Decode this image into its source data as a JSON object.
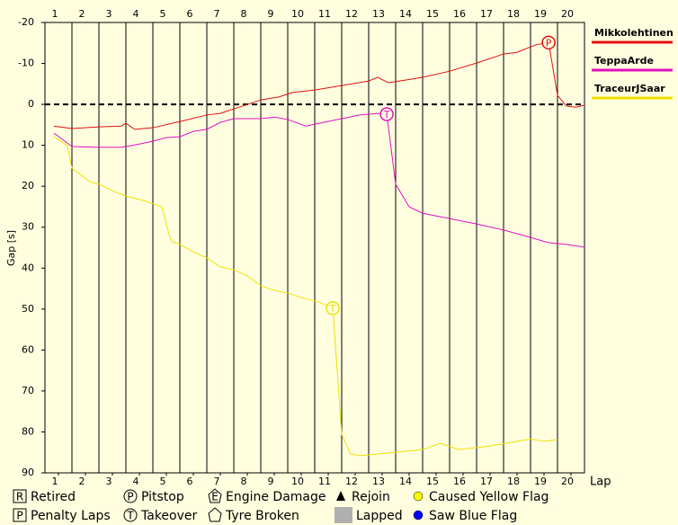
{
  "chart_data": {
    "type": "line",
    "xlabel": "Lap",
    "ylabel": "Gap [s]",
    "xlim": [
      0,
      20
    ],
    "ylim": [
      -20,
      90
    ],
    "y_inverted": true,
    "xticks": [
      {
        "value": 0.5,
        "label": "1"
      },
      {
        "value": 1.5,
        "label": "2"
      },
      {
        "value": 2.5,
        "label": "3"
      },
      {
        "value": 3.5,
        "label": "4"
      },
      {
        "value": 4.5,
        "label": "5"
      },
      {
        "value": 5.5,
        "label": "6"
      },
      {
        "value": 6.5,
        "label": "7"
      },
      {
        "value": 7.5,
        "label": "8"
      },
      {
        "value": 8.5,
        "label": "9"
      },
      {
        "value": 9.5,
        "label": "10"
      },
      {
        "value": 10.5,
        "label": "11"
      },
      {
        "value": 11.5,
        "label": "12"
      },
      {
        "value": 12.5,
        "label": "13"
      },
      {
        "value": 13.5,
        "label": "14"
      },
      {
        "value": 14.5,
        "label": "15"
      },
      {
        "value": 15.5,
        "label": "16"
      },
      {
        "value": 16.5,
        "label": "17"
      },
      {
        "value": 17.5,
        "label": "18"
      },
      {
        "value": 18.5,
        "label": "19"
      },
      {
        "value": 19.5,
        "label": "20"
      }
    ],
    "lap_lines": [
      1,
      2,
      3,
      4,
      5,
      6,
      7,
      8,
      9,
      10,
      11,
      12,
      13,
      14,
      15,
      16,
      17,
      18,
      19
    ],
    "yticks": [
      -20,
      -10,
      0,
      10,
      20,
      30,
      40,
      50,
      60,
      70,
      80,
      90
    ],
    "zero_line": 0,
    "series": [
      {
        "name": "Mikkolehtinen",
        "color": "#e01010",
        "x": [
          0.33,
          1.0,
          2.0,
          2.83,
          3.0,
          3.33,
          4.0,
          5.0,
          6.0,
          6.5,
          7.33,
          8.0,
          8.67,
          9.17,
          10.0,
          11.0,
          12.0,
          12.33,
          12.73,
          13.33,
          14.0,
          15.0,
          16.0,
          17.0,
          17.5,
          18.17,
          18.67,
          19.0,
          19.33,
          19.67,
          20
        ],
        "values": [
          5.3,
          5.9,
          5.5,
          5.3,
          4.6,
          6.1,
          5.7,
          4.2,
          2.6,
          2.2,
          0.4,
          -1.1,
          -1.8,
          -2.9,
          -3.5,
          -4.6,
          -5.7,
          -6.6,
          -5.3,
          -5.9,
          -6.6,
          -8.1,
          -10.1,
          -12.3,
          -12.7,
          -14.5,
          -15.1,
          -2.2,
          0.4,
          0.7,
          0.2
        ]
      },
      {
        "name": "TeppaArde",
        "color": "#e010c0",
        "x": [
          0.33,
          1.0,
          2.0,
          2.83,
          3.5,
          4.0,
          4.5,
          5.0,
          5.5,
          6.0,
          6.5,
          7.0,
          8.0,
          8.5,
          9.0,
          9.67,
          10.33,
          11.0,
          11.67,
          12.33,
          12.67,
          13.0,
          13.5,
          14.0,
          15.0,
          16.0,
          17.0,
          18.0,
          18.67,
          19.33,
          20
        ],
        "values": [
          7.0,
          10.3,
          10.5,
          10.5,
          9.7,
          9.0,
          8.1,
          7.9,
          6.6,
          6.1,
          4.4,
          3.5,
          3.5,
          3.1,
          3.7,
          5.3,
          4.4,
          3.5,
          2.6,
          2.2,
          2.4,
          19.5,
          25.0,
          26.6,
          27.9,
          29.2,
          30.7,
          32.5,
          33.8,
          34.2,
          34.9
        ]
      },
      {
        "name": "TraceurJSaar",
        "color": "#f0e000",
        "x": [
          0.33,
          0.83,
          1.0,
          1.67,
          2.0,
          2.5,
          3.0,
          3.67,
          4.33,
          4.67,
          5.0,
          5.5,
          6.0,
          6.5,
          7.0,
          7.5,
          8.0,
          8.5,
          9.0,
          9.5,
          10.17,
          10.67,
          11.0,
          11.33,
          11.67,
          12.33,
          13.0,
          14.0,
          14.67,
          15.33,
          16.33,
          17.33,
          18.0,
          18.5,
          19.0
        ],
        "values": [
          7.9,
          10.1,
          15.6,
          18.9,
          19.5,
          21.1,
          22.4,
          23.5,
          25.0,
          33.4,
          34.2,
          36.0,
          37.5,
          39.7,
          40.4,
          41.9,
          44.3,
          45.4,
          46.1,
          47.2,
          48.3,
          49.8,
          80.6,
          85.4,
          85.8,
          85.4,
          85.0,
          84.3,
          82.8,
          84.3,
          83.6,
          82.5,
          81.7,
          82.3,
          81.9
        ]
      }
    ],
    "markers": [
      {
        "x": 18.67,
        "y": -15.1,
        "label": "P",
        "color": "#e01010"
      },
      {
        "x": 12.67,
        "y": 2.4,
        "label": "T",
        "color": "#e010c0"
      },
      {
        "x": 10.67,
        "y": 49.8,
        "label": "T",
        "color": "#f0e000"
      }
    ],
    "key": [
      {
        "symbol": "R",
        "label": "Retired"
      },
      {
        "symbol": "P",
        "label": "Penalty Laps"
      },
      {
        "symbol": "P",
        "label": "Pitstop"
      },
      {
        "symbol": "T",
        "label": "Takeover"
      },
      {
        "symbol": "E",
        "label": "Engine Damage"
      },
      {
        "label": "Tyre Broken"
      },
      {
        "label": "Rejoin"
      },
      {
        "label": "Lapped"
      },
      {
        "label": "Caused Yellow Flag"
      },
      {
        "label": "Saw Blue Flag"
      }
    ]
  }
}
